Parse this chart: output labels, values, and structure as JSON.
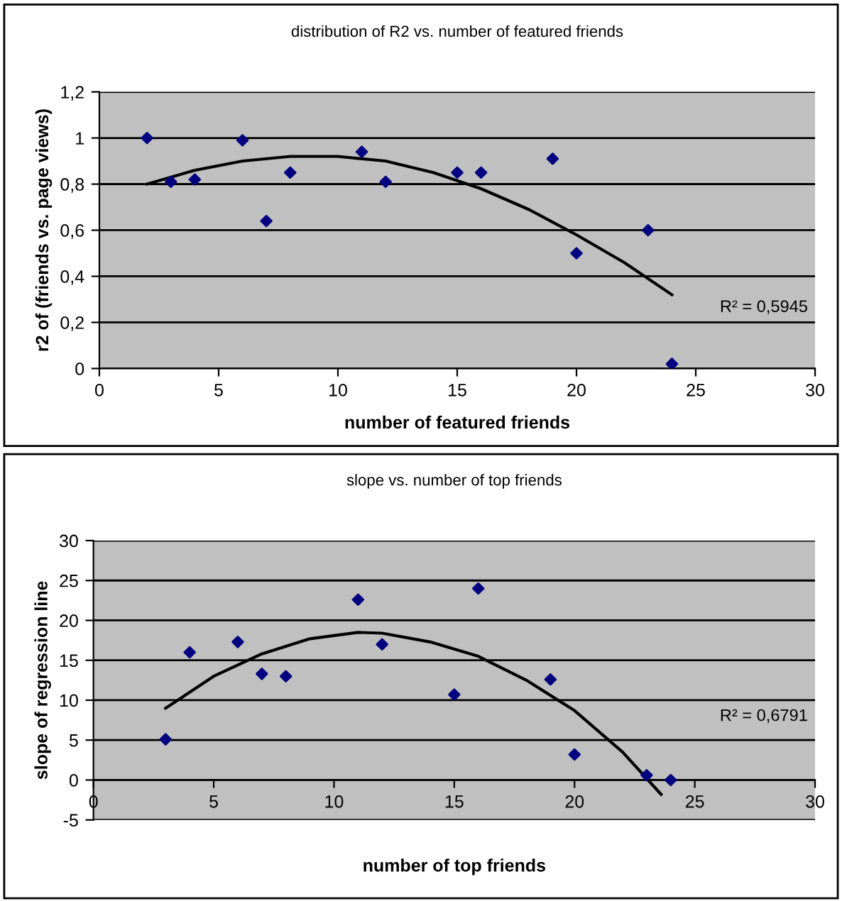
{
  "chart_data": [
    {
      "type": "scatter",
      "title": "distribution of R2 vs. number of featured friends",
      "xlabel": "number of featured friends",
      "ylabel": "r2 of (friends vs. page views)",
      "series": [
        {
          "color": "#000080",
          "marker": "diamond",
          "x": [
            2,
            3,
            4,
            6,
            7,
            8,
            11,
            12,
            15,
            16,
            19,
            20,
            23,
            24
          ],
          "values": [
            1.0,
            0.81,
            0.82,
            0.99,
            0.64,
            0.85,
            0.94,
            0.81,
            0.85,
            0.85,
            0.91,
            0.5,
            0.6,
            0.02
          ]
        },
        {
          "type": "line",
          "color": "#000000",
          "marker": "none",
          "x": [
            2,
            4,
            6,
            8,
            10,
            12,
            14,
            16,
            18,
            20,
            22,
            24
          ],
          "values": [
            0.8,
            0.86,
            0.9,
            0.92,
            0.92,
            0.9,
            0.85,
            0.78,
            0.69,
            0.58,
            0.46,
            0.32
          ]
        }
      ],
      "xlim": [
        0,
        30
      ],
      "xticks": [
        0,
        5,
        10,
        15,
        20,
        25,
        30
      ],
      "ylim": [
        0,
        1.2
      ],
      "yticks": [
        0,
        {
          "value": 0.2,
          "label": "0,2"
        },
        {
          "value": 0.4,
          "label": "0,4"
        },
        {
          "value": 0.6,
          "label": "0,6"
        },
        {
          "value": 0.8,
          "label": "0,8"
        },
        1,
        {
          "value": 1.2,
          "label": "1,2"
        }
      ],
      "grid": "y",
      "legend": false,
      "annotations": [
        "R² = 0,5945"
      ]
    },
    {
      "type": "scatter",
      "title": "slope vs. number of top friends",
      "xlabel": "number of top friends",
      "ylabel": "slope of regression line",
      "series": [
        {
          "color": "#000080",
          "marker": "diamond",
          "x": [
            3,
            4,
            6,
            7,
            8,
            11,
            12,
            15,
            16,
            19,
            20,
            23,
            24
          ],
          "values": [
            5.1,
            16,
            17.3,
            13.3,
            13,
            22.6,
            17,
            10.7,
            24,
            12.6,
            3.2,
            0.6,
            0
          ]
        },
        {
          "type": "line",
          "color": "#000000",
          "marker": "none",
          "x": [
            3,
            5,
            7,
            9,
            11,
            12,
            14,
            16,
            18,
            20,
            22,
            23.6
          ],
          "values": [
            9,
            13,
            15.8,
            17.7,
            18.5,
            18.4,
            17.3,
            15.5,
            12.5,
            8.7,
            3.5,
            -1.8
          ]
        }
      ],
      "xlim": [
        0,
        30
      ],
      "xticks": [
        0,
        5,
        10,
        15,
        20,
        25,
        30
      ],
      "ylim": [
        -5,
        30
      ],
      "yticks": [
        -5,
        0,
        5,
        10,
        15,
        20,
        25,
        30
      ],
      "grid": "y",
      "legend": false,
      "annotations": [
        "R² = 0,6791"
      ]
    }
  ]
}
